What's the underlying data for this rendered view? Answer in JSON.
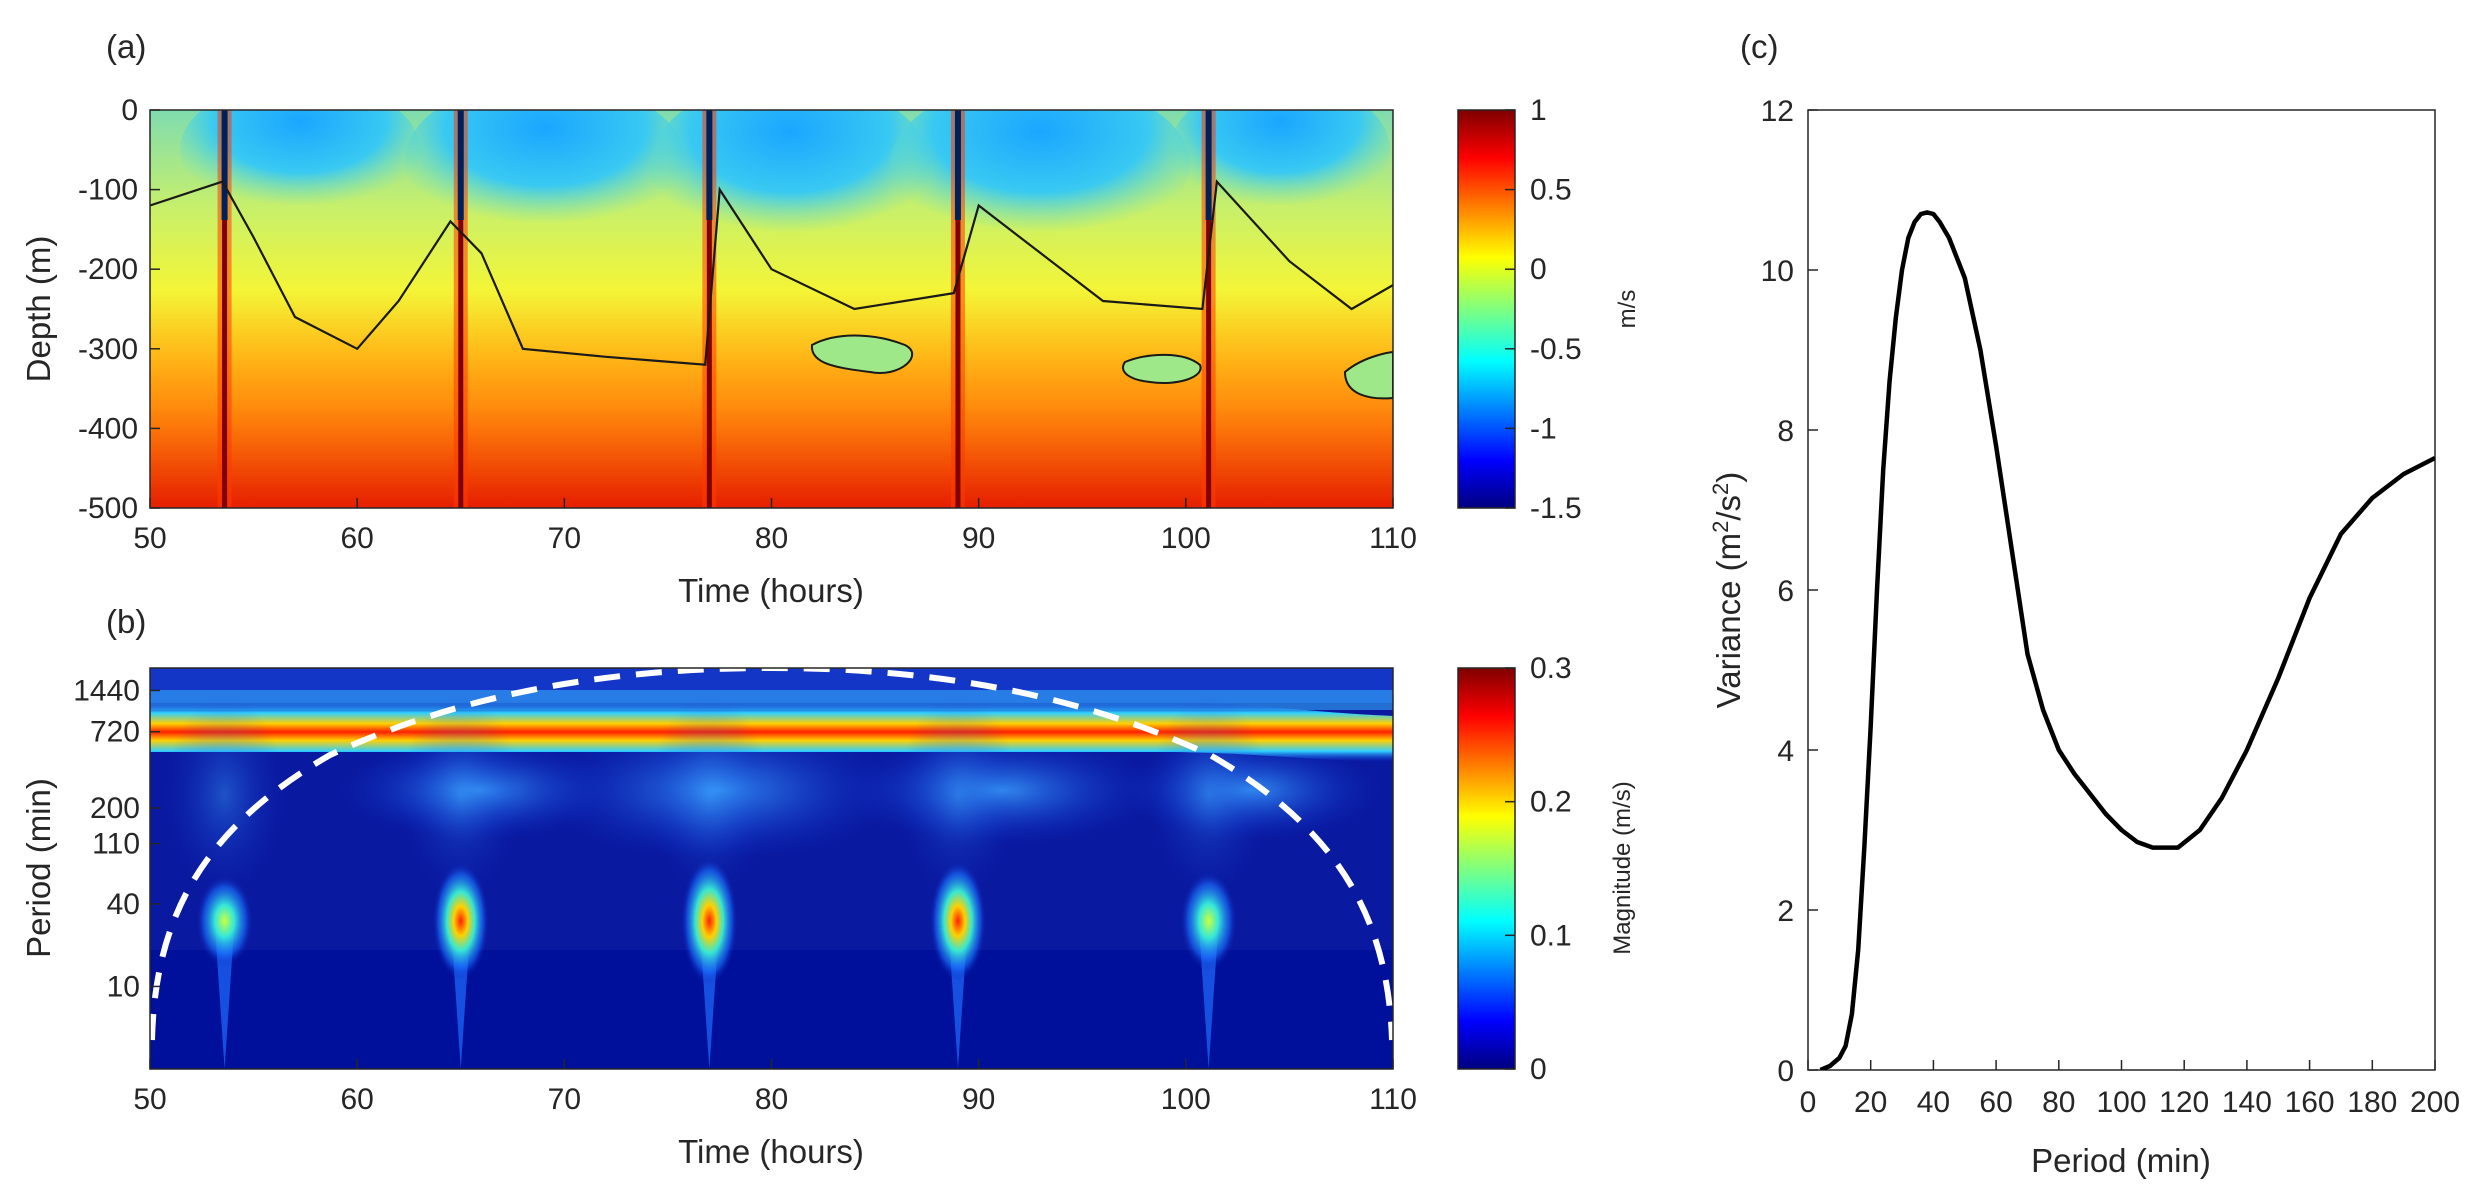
{
  "colors": {
    "axis": "#262626",
    "contour": "#1a1a1a",
    "line": "#000000",
    "dashed": "#ffffff"
  },
  "chart_data": [
    {
      "panel": "(a)",
      "type": "heatmap",
      "xlabel": "Time (hours)",
      "ylabel": "Depth (m)",
      "xlim": [
        50,
        110
      ],
      "ylim": [
        -500,
        0
      ],
      "xticks": [
        50,
        60,
        70,
        80,
        90,
        100,
        110
      ],
      "yticks": [
        0,
        -100,
        -200,
        -300,
        -400,
        -500
      ],
      "colorbar": {
        "label": "m/s",
        "range": [
          -1.5,
          1
        ],
        "ticks": [
          1,
          0.5,
          0,
          -0.5,
          -1,
          -1.5
        ],
        "colormap": "jet"
      },
      "spike_times": [
        53.6,
        65.0,
        77.0,
        89.0,
        101.1
      ],
      "contour_level": -0.3,
      "contour_depths": [
        {
          "time": 50,
          "depth": -120
        },
        {
          "time": 53.5,
          "depth": -90
        },
        {
          "time": 55,
          "depth": -160
        },
        {
          "time": 57,
          "depth": -260
        },
        {
          "time": 60,
          "depth": -300
        },
        {
          "time": 62,
          "depth": -240
        },
        {
          "time": 64.5,
          "depth": -140
        },
        {
          "time": 66,
          "depth": -180
        },
        {
          "time": 68,
          "depth": -300
        },
        {
          "time": 72,
          "depth": -310
        },
        {
          "time": 76.8,
          "depth": -320
        },
        {
          "time": 77.5,
          "depth": -100
        },
        {
          "time": 80,
          "depth": -200
        },
        {
          "time": 84,
          "depth": -250
        },
        {
          "time": 88.8,
          "depth": -230
        },
        {
          "time": 90,
          "depth": -120
        },
        {
          "time": 93,
          "depth": -180
        },
        {
          "time": 96,
          "depth": -240
        },
        {
          "time": 100.8,
          "depth": -250
        },
        {
          "time": 101.5,
          "depth": -90
        },
        {
          "time": 105,
          "depth": -190
        },
        {
          "time": 108,
          "depth": -250
        },
        {
          "time": 110,
          "depth": -220
        }
      ]
    },
    {
      "panel": "(b)",
      "type": "heatmap",
      "xlabel": "Time (hours)",
      "ylabel": "Period (min)",
      "xlim": [
        50,
        110
      ],
      "yscale": "log",
      "ylim": [
        2.5,
        2100
      ],
      "xticks": [
        50,
        60,
        70,
        80,
        90,
        100,
        110
      ],
      "yticks": [
        1440,
        720,
        200,
        110,
        40,
        10
      ],
      "colorbar": {
        "label": "Magnitude (m/s)",
        "range": [
          0,
          0.3
        ],
        "ticks": [
          0.3,
          0.2,
          0.1,
          0
        ],
        "colormap": "jet"
      },
      "tidal_band_period": 720,
      "burst_times": [
        53.6,
        65.0,
        77.0,
        89.0,
        101.1
      ],
      "burst_peak_magnitudes": [
        0.12,
        0.22,
        0.26,
        0.23,
        0.15
      ],
      "cone_of_influence": "dashed white"
    },
    {
      "panel": "(c)",
      "type": "line",
      "xlabel": "Period (min)",
      "ylabel_base": "Variance (m",
      "ylabel_sup1": "2",
      "ylabel_mid": "/s",
      "ylabel_sup2": "2",
      "ylabel_end": ")",
      "xlim": [
        0,
        200
      ],
      "ylim": [
        0,
        12
      ],
      "xticks": [
        0,
        20,
        40,
        60,
        80,
        100,
        120,
        140,
        160,
        180,
        200
      ],
      "yticks": [
        0,
        2,
        4,
        6,
        8,
        10,
        12
      ],
      "x": [
        4,
        7,
        10,
        12,
        14,
        16,
        18,
        20,
        22,
        24,
        26,
        28,
        30,
        32,
        34,
        36,
        38,
        40,
        42,
        45,
        50,
        55,
        60,
        65,
        70,
        75,
        80,
        85,
        90,
        95,
        100,
        105,
        110,
        118,
        125,
        132,
        140,
        150,
        160,
        170,
        180,
        190,
        200
      ],
      "y": [
        0.0,
        0.05,
        0.15,
        0.3,
        0.7,
        1.5,
        2.8,
        4.3,
        6.0,
        7.5,
        8.6,
        9.4,
        10.0,
        10.4,
        10.6,
        10.7,
        10.72,
        10.7,
        10.6,
        10.4,
        9.9,
        9.0,
        7.8,
        6.5,
        5.2,
        4.5,
        4.0,
        3.7,
        3.45,
        3.2,
        3.0,
        2.85,
        2.78,
        2.78,
        3.0,
        3.4,
        4.0,
        4.9,
        5.9,
        6.7,
        7.15,
        7.45,
        7.65
      ]
    }
  ]
}
